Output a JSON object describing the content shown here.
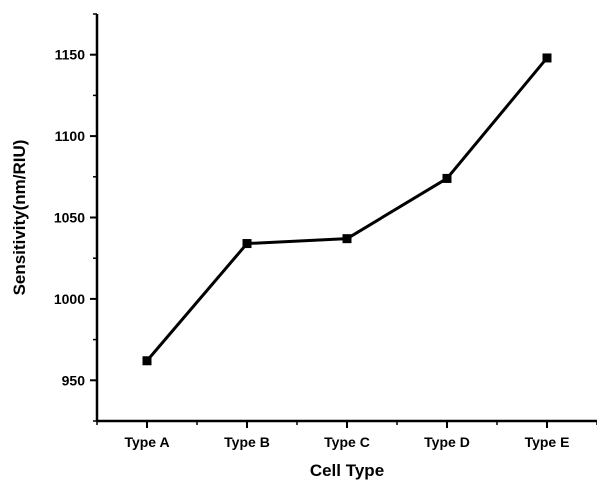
{
  "chart_data": {
    "type": "line",
    "categories": [
      "Type A",
      "Type B",
      "Type C",
      "Type D",
      "Type E"
    ],
    "values": [
      962,
      1034,
      1037,
      1074,
      1148
    ],
    "xlabel": "Cell Type",
    "ylabel": "Sensitivity(nm/RIU)",
    "ylim": [
      925,
      1175
    ],
    "yticks": [
      950,
      1000,
      1050,
      1100,
      1150
    ],
    "grid": false,
    "marker": "square",
    "line_color": "#000000"
  }
}
